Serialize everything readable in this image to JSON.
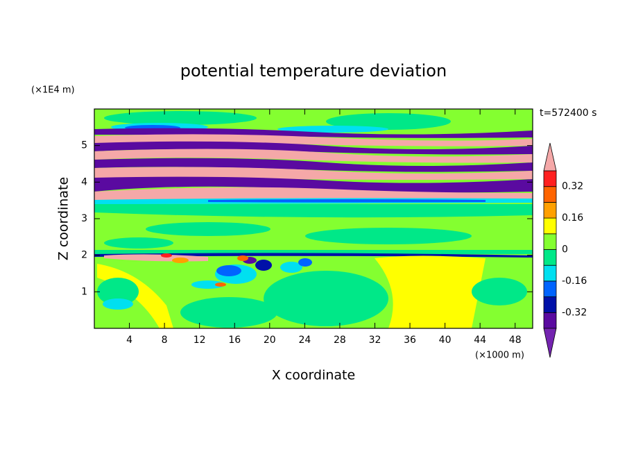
{
  "chart_data": {
    "type": "contour",
    "title": "potential temperature deviation",
    "x_label": "X coordinate",
    "y_label": "Z coordinate",
    "x_unit": "(×1000 m)",
    "y_unit": "(×1E4 m)",
    "annotation": "t=572400 s",
    "xlim": [
      0,
      50
    ],
    "ylim": [
      0,
      6
    ],
    "xticks": [
      4,
      8,
      12,
      16,
      20,
      24,
      28,
      32,
      36,
      40,
      44,
      48
    ],
    "yticks": [
      1,
      2,
      3,
      4,
      5
    ],
    "levels": [
      -0.4,
      -0.32,
      -0.24,
      -0.16,
      -0.08,
      0,
      0.08,
      0.16,
      0.24,
      0.32,
      0.4
    ],
    "colors": [
      "#5a0aa0",
      "#0010a8",
      "#0064ff",
      "#00e0f0",
      "#00e888",
      "#84ff30",
      "#ffff00",
      "#ffa000",
      "#ff6400",
      "#ff2020"
    ],
    "below_color": "#7424b0",
    "above_color": "#f5a8a8",
    "colorbar_ticks": [
      -0.32,
      -0.16,
      0,
      0.16,
      0.32
    ]
  }
}
